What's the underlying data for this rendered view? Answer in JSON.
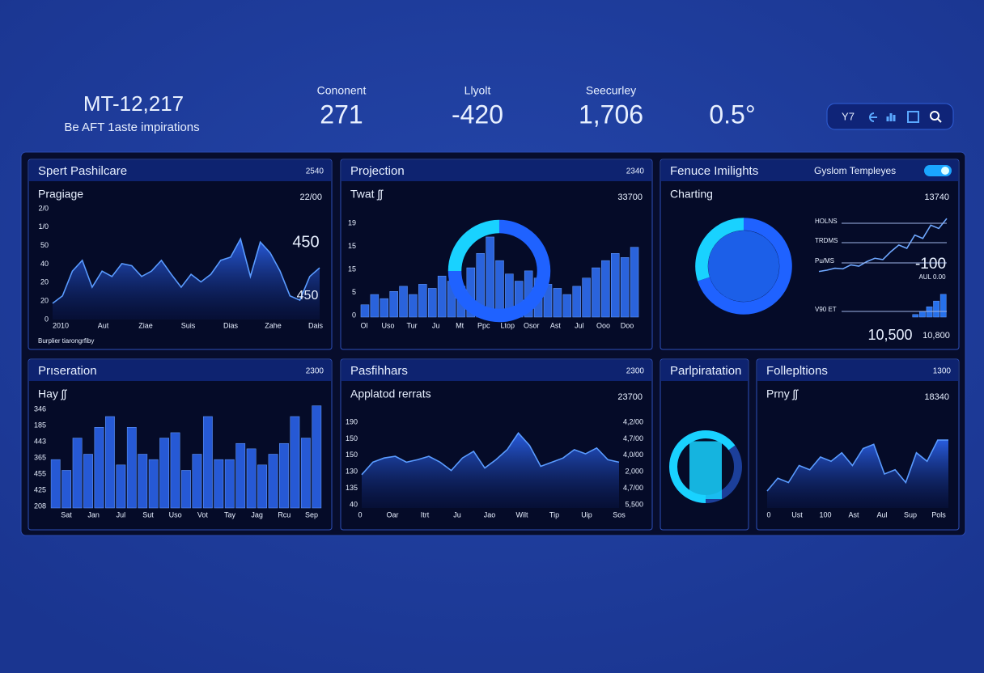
{
  "header": {
    "title": "MT-12,217",
    "subtitle": "Be AFT 1aste impirations"
  },
  "kpis": [
    {
      "label": "Cononent",
      "value": "271"
    },
    {
      "label": "Llyolt",
      "value": "-420"
    },
    {
      "label": "Seecurley",
      "value": "1,706"
    },
    {
      "value": "0.5°"
    }
  ],
  "toolbar": {
    "label": "Y7"
  },
  "panels": [
    {
      "title": "Spert Pashilcare",
      "badge": "2540",
      "subtitle": "Pragiage",
      "corner": "22/00",
      "y_labels": [
        "2/0",
        "1/0",
        "50",
        "40",
        "20",
        "20",
        "0"
      ],
      "x_labels": [
        "2010",
        "Aut",
        "Ziae",
        "Suis",
        "Dias",
        "Zahe",
        "Dais"
      ],
      "annotations": [
        "450",
        "450"
      ],
      "footnote": "Burplier tiarongrfiby",
      "charts": [
        {
          "type": "area",
          "color": "#5a9bff",
          "ylim": [
            0,
            100
          ],
          "values": [
            15,
            22,
            45,
            55,
            30,
            45,
            40,
            52,
            50,
            40,
            45,
            55,
            42,
            30,
            42,
            35,
            42,
            55,
            58,
            75,
            40,
            72,
            62,
            45,
            22,
            18,
            40,
            48
          ]
        }
      ]
    },
    {
      "title": "Projection",
      "badge": "2340",
      "subtitle": "Twat ʃʃ",
      "corner": "33700",
      "y_labels": [
        "19",
        "15",
        "15",
        "5",
        "0"
      ],
      "x_labels": [
        "Ol",
        "Uso",
        "Tur",
        "Ju",
        "Mt",
        "Ppc",
        "Ltop",
        "Osor",
        "Ast",
        "Jul",
        "Ooo",
        "Doo"
      ],
      "charts": [
        {
          "type": "bar",
          "color": "#2f6df0",
          "ylim": [
            0,
            100
          ],
          "values": [
            12,
            22,
            18,
            25,
            30,
            22,
            32,
            28,
            40,
            35,
            30,
            48,
            62,
            78,
            55,
            42,
            35,
            45,
            38,
            32,
            28,
            22,
            30,
            38,
            48,
            55,
            62,
            58,
            68
          ]
        },
        {
          "type": "donut",
          "colors": [
            "#1f62ff",
            "#19d2ff"
          ],
          "values": [
            75,
            25
          ]
        }
      ]
    },
    {
      "title": "Fenuce Imilights",
      "link": "Gyslom Templeyes",
      "subtitle": "Charting",
      "corner": "13740",
      "legend": [
        "HOLNS",
        "TRDMS",
        "Pu/MS",
        "V90 ET"
      ],
      "annotations": [
        "-100",
        "AUL 0.00",
        "10,500",
        "10,800"
      ],
      "charts": [
        {
          "type": "donut",
          "colors": [
            "#1f62ff",
            "#19d2ff"
          ],
          "values": [
            70,
            30
          ]
        },
        {
          "type": "line",
          "color": "#6fa8ff",
          "ylim": [
            0,
            110
          ],
          "values": [
            20,
            22,
            25,
            24,
            30,
            28,
            35,
            40,
            38,
            50,
            60,
            55,
            75,
            70,
            90,
            85,
            100
          ]
        },
        {
          "type": "bar",
          "color": "#2a7bff",
          "ylim": [
            0,
            100
          ],
          "values": [
            10,
            22,
            40,
            62,
            88
          ]
        }
      ]
    },
    {
      "title": "Prıseration",
      "badge": "2300",
      "subtitle": "Hay ʃʃ",
      "y_labels": [
        "346",
        "185",
        "443",
        "365",
        "455",
        "425",
        "208"
      ],
      "x_labels": [
        "Sat",
        "Jan",
        "Jul",
        "Sut",
        "Uso",
        "Vot",
        "Tay",
        "Jag",
        "Rcu",
        "Sep"
      ],
      "charts": [
        {
          "type": "bar",
          "color": "#2a62e8",
          "ylim": [
            0,
            100
          ],
          "values": [
            45,
            35,
            65,
            50,
            75,
            85,
            40,
            75,
            50,
            45,
            65,
            70,
            35,
            50,
            85,
            45,
            45,
            60,
            55,
            40,
            50,
            60,
            85,
            65,
            95
          ]
        }
      ]
    },
    {
      "title": "Pasfihhars",
      "badge": "2300",
      "subtitle": "Applatod rerrats",
      "corner": "23700",
      "y_labels": [
        "190",
        "150",
        "150",
        "130",
        "135",
        "40"
      ],
      "y2_labels": [
        "4,2/00",
        "4,7/00",
        "4,0/00",
        "2,000",
        "4,7/00",
        "5,500"
      ],
      "x_labels": [
        "0",
        "Oar",
        "Itrt",
        "Ju",
        "Jao",
        "Wilt",
        "Tip",
        "Uip",
        "Sos"
      ],
      "charts": [
        {
          "type": "area",
          "color": "#5a9bff",
          "ylim": [
            0,
            100
          ],
          "values": [
            40,
            55,
            60,
            62,
            55,
            58,
            62,
            55,
            45,
            60,
            68,
            48,
            58,
            70,
            90,
            75,
            50,
            55,
            60,
            70,
            65,
            72,
            58,
            55
          ]
        }
      ]
    },
    {
      "title": "Parlpiratation",
      "charts": [
        {
          "type": "gauge",
          "color": "#19d2ff",
          "ylim": [
            0,
            100
          ],
          "values": [
            65
          ]
        }
      ]
    },
    {
      "title": "Follepltions",
      "badge": "1300",
      "subtitle": "Prny ʃʃ",
      "corner": "18340",
      "x_labels": [
        "0",
        "Ust",
        "100",
        "Ast",
        "Aul",
        "Sup",
        "Pols"
      ],
      "charts": [
        {
          "type": "area",
          "color": "#5a9bff",
          "ylim": [
            0,
            100
          ],
          "values": [
            20,
            35,
            30,
            50,
            45,
            60,
            55,
            65,
            50,
            70,
            75,
            40,
            45,
            30,
            65,
            55,
            80,
            80
          ]
        }
      ]
    }
  ]
}
